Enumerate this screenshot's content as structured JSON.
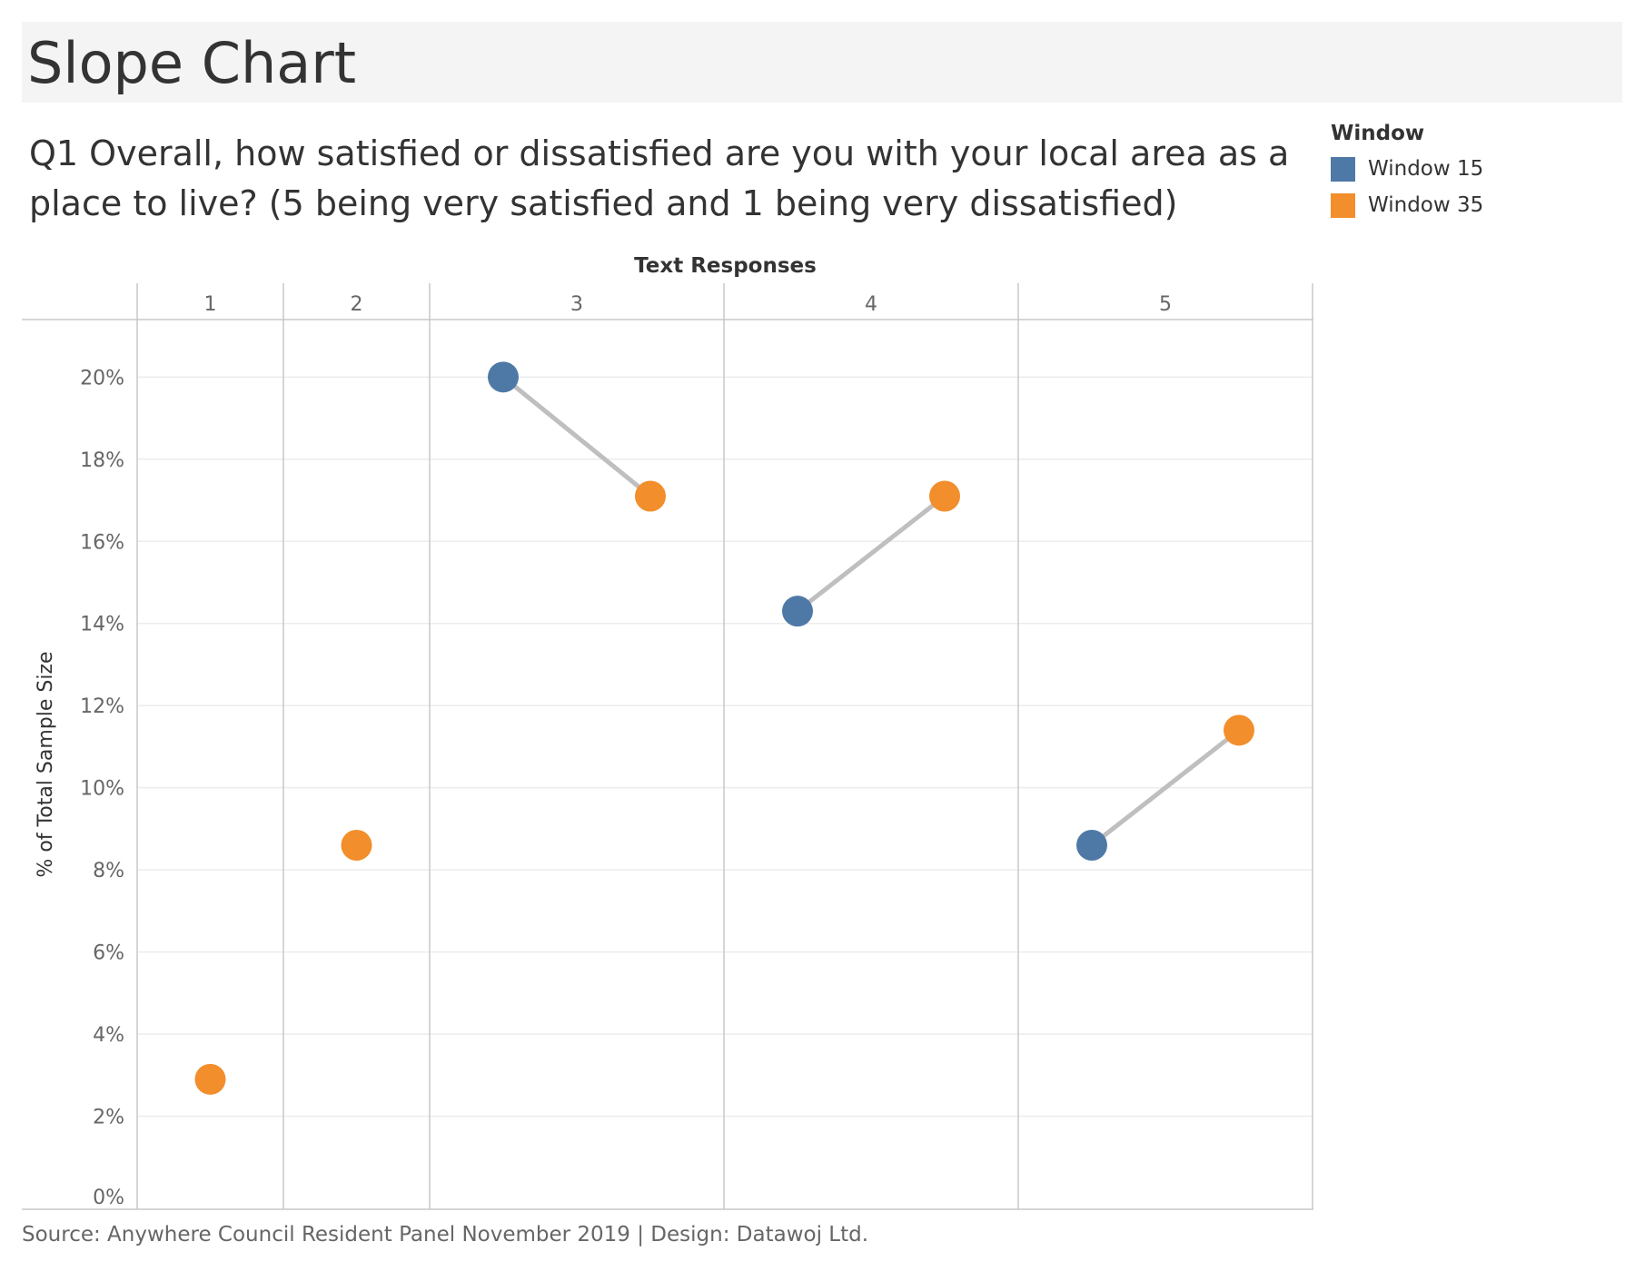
{
  "title": "Slope Chart",
  "question": "Q1 Overall, how satisfied or dissatisfied are you with your local area as a place to live? (5 being very satisfied and 1 being very dissatisfied)",
  "legend": {
    "title": "Window",
    "items": [
      {
        "label": "Window 15",
        "color": "#4e79a7"
      },
      {
        "label": "Window 35",
        "color": "#f28e2b"
      }
    ]
  },
  "source": "Source: Anywhere Council Resident Panel November 2019 | Design: Datawoj Ltd.",
  "chart_data": {
    "type": "scatter",
    "title": "",
    "column_header": "Text Responses",
    "categories": [
      "1",
      "2",
      "3",
      "4",
      "5"
    ],
    "ylabel": "% of Total Sample Size",
    "ylim": [
      0,
      21.4
    ],
    "yticks": [
      0,
      2,
      4,
      6,
      8,
      10,
      12,
      14,
      16,
      18,
      20
    ],
    "ytick_labels": [
      "0%",
      "2%",
      "4%",
      "6%",
      "8%",
      "10%",
      "12%",
      "14%",
      "16%",
      "18%",
      "20%"
    ],
    "grid": true,
    "series": [
      {
        "name": "Window 15",
        "color": "#4e79a7",
        "values": [
          null,
          null,
          20.0,
          14.3,
          8.6
        ]
      },
      {
        "name": "Window 35",
        "color": "#f28e2b",
        "values": [
          2.9,
          8.6,
          17.1,
          17.1,
          11.4
        ]
      }
    ],
    "connector_color": "#bfbfbf"
  }
}
